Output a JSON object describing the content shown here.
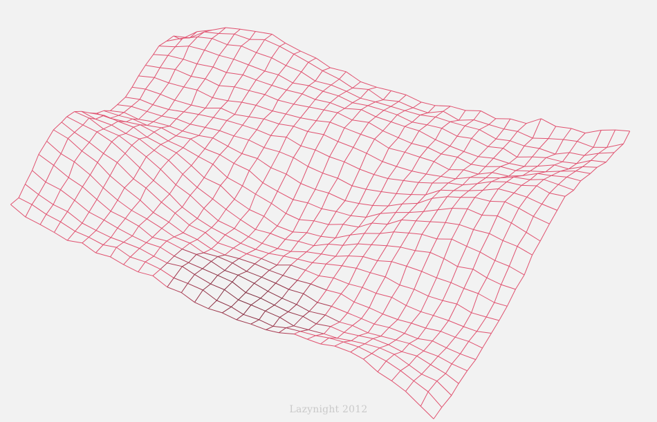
{
  "credit": "Lazynight 2012",
  "colors": {
    "background": "#f2f2f2",
    "mesh_front": "#e0506e",
    "mesh_back": "#5a1a28",
    "credit": "#c9c9c9"
  },
  "mesh": {
    "type": "wireframe-terrain",
    "rows": 24,
    "cols": 30
  }
}
